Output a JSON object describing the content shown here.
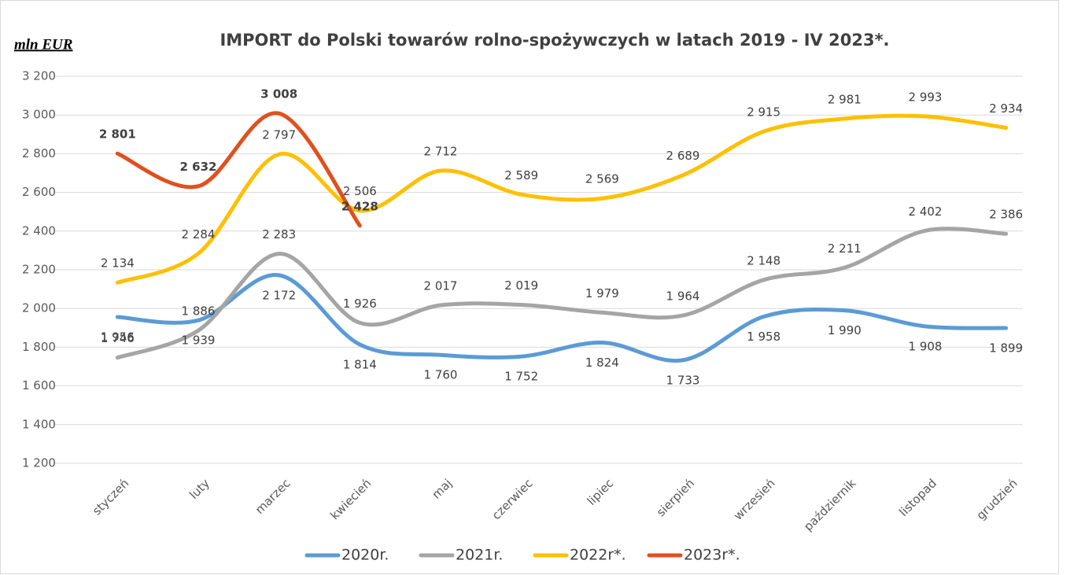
{
  "chart_data": {
    "type": "line",
    "title": "IMPORT do Polski towarów rolno-spożywczych w latach 2019 - IV 2023*.",
    "y_label": "mln EUR",
    "categories": [
      "styczeń",
      "luty",
      "marzec",
      "kwiecień",
      "maj",
      "czerwiec",
      "lipiec",
      "sierpień",
      "wrzesień",
      "październik",
      "listopad",
      "grudzień"
    ],
    "series": [
      {
        "name": "2020r.",
        "color": "#5b9bd5",
        "values": [
          1956,
          1939,
          2172,
          1814,
          1760,
          1752,
          1824,
          1733,
          1958,
          1990,
          1908,
          1899
        ],
        "value_labels": [
          "1 956",
          "1 939",
          "2 172",
          "1 814",
          "1 760",
          "1 752",
          "1 824",
          "1 733",
          "1 958",
          "1 990",
          "1 908",
          "1 899"
        ]
      },
      {
        "name": "2021r.",
        "color": "#a5a5a5",
        "values": [
          1746,
          1886,
          2283,
          1926,
          2017,
          2019,
          1979,
          1964,
          2148,
          2211,
          2402,
          2386
        ],
        "value_labels": [
          "1 746",
          "1 886",
          "2 283",
          "1 926",
          "2 017",
          "2 019",
          "1 979",
          "1 964",
          "2 148",
          "2 211",
          "2 402",
          "2 386"
        ]
      },
      {
        "name": "2022r*.",
        "color": "#ffc000",
        "values": [
          2134,
          2284,
          2797,
          2506,
          2712,
          2589,
          2569,
          2689,
          2915,
          2981,
          2993,
          2934
        ],
        "value_labels": [
          "2 134",
          "2 284",
          "2 797",
          "2 506",
          "2 712",
          "2 589",
          "2 569",
          "2 689",
          "2 915",
          "2 981",
          "2 993",
          "2 934"
        ]
      },
      {
        "name": "2023r*.",
        "color": "#e0501e",
        "values": [
          2801,
          2632,
          3008,
          2428,
          null,
          null,
          null,
          null,
          null,
          null,
          null,
          null
        ],
        "value_labels": [
          "2 801",
          "2 632",
          "3 008",
          "2 428",
          null,
          null,
          null,
          null,
          null,
          null,
          null,
          null
        ]
      }
    ],
    "ylim": [
      1200,
      3200
    ],
    "yticks": [
      {
        "value": 1200,
        "label": "1 200"
      },
      {
        "value": 1400,
        "label": "1 400"
      },
      {
        "value": 1600,
        "label": "1 600"
      },
      {
        "value": 1800,
        "label": "1 800"
      },
      {
        "value": 2000,
        "label": "2 000"
      },
      {
        "value": 2200,
        "label": "2 200"
      },
      {
        "value": 2400,
        "label": "2 400"
      },
      {
        "value": 2600,
        "label": "2 600"
      },
      {
        "value": 2800,
        "label": "2 800"
      },
      {
        "value": 3000,
        "label": "3 000"
      },
      {
        "value": 3200,
        "label": "3 200"
      }
    ],
    "grid": true,
    "legend": "bottom"
  }
}
